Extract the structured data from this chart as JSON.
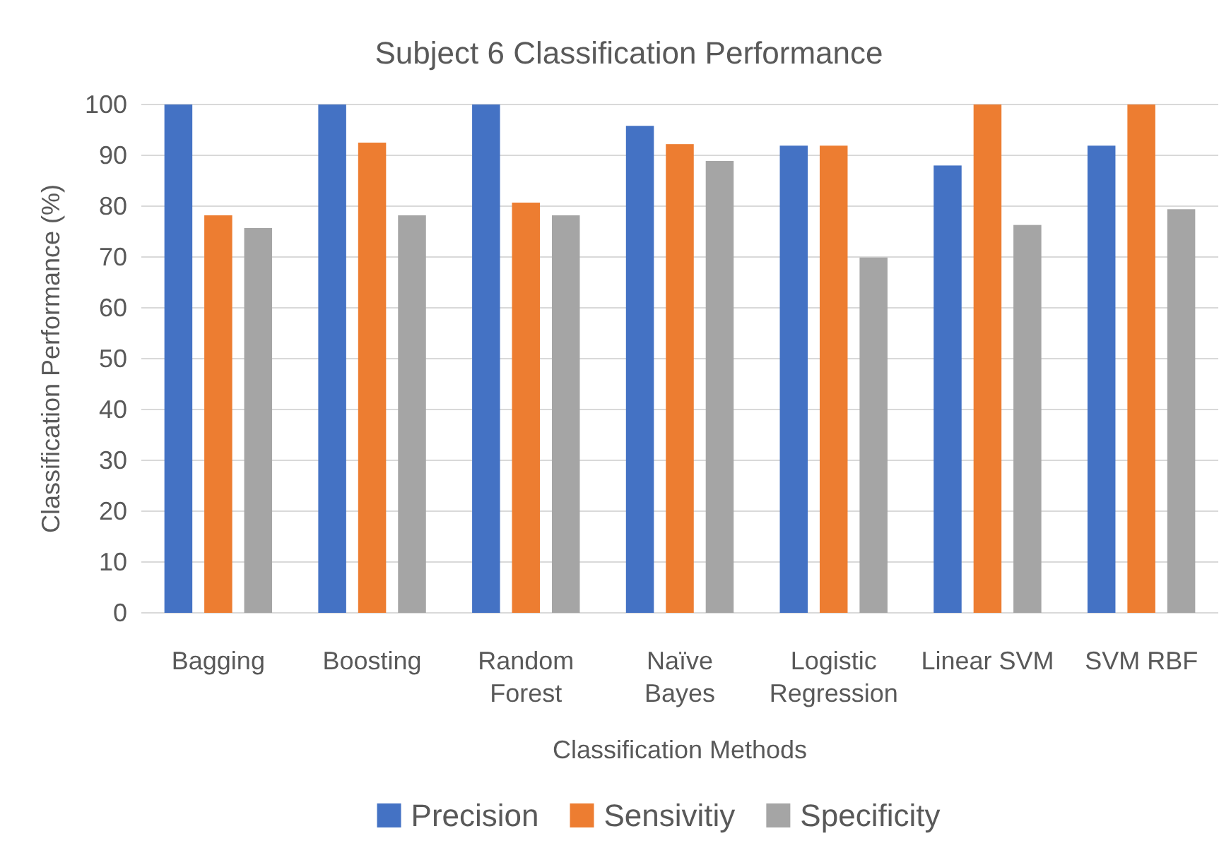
{
  "chart_data": {
    "type": "bar",
    "title": "Subject 6 Classification Performance",
    "xlabel": "Classification Methods",
    "ylabel": "Classification Performance (%)",
    "categories": [
      "Bagging",
      "Boosting",
      "Random Forest",
      "Naïve Bayes",
      "Logistic Regression",
      "Linear SVM",
      "SVM RBF"
    ],
    "series": [
      {
        "name": "Precision",
        "color": "#4472c4",
        "values": [
          100,
          100,
          100,
          95.8,
          91.9,
          88,
          91.9
        ]
      },
      {
        "name": "Sensivitiy",
        "color": "#ed7d31",
        "values": [
          78.2,
          92.5,
          80.7,
          92.2,
          91.9,
          100,
          100
        ]
      },
      {
        "name": "Specificity",
        "color": "#a5a5a5",
        "values": [
          75.7,
          78.2,
          78.2,
          88.9,
          69.9,
          76.3,
          79.4
        ]
      }
    ],
    "ylim": [
      0,
      100
    ],
    "yticks": [
      0,
      10,
      20,
      30,
      40,
      50,
      60,
      70,
      80,
      90,
      100
    ],
    "grid": "y",
    "legend": "bottom"
  }
}
